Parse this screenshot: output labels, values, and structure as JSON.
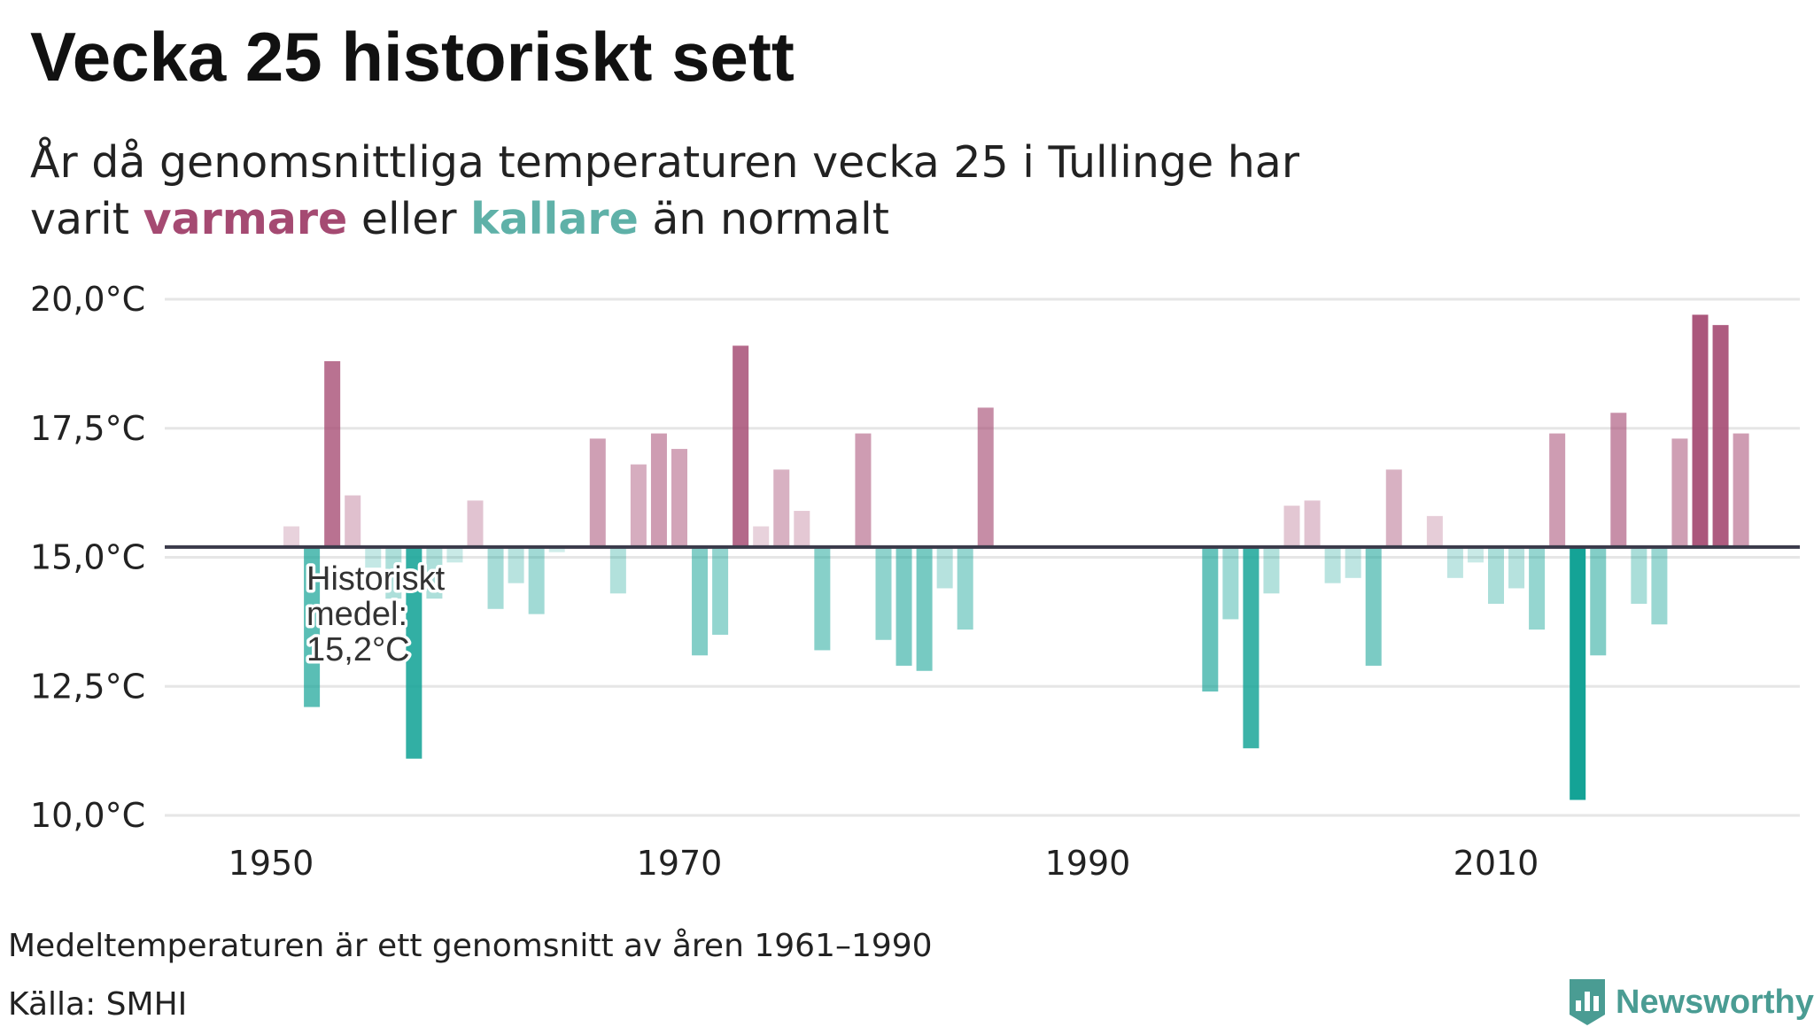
{
  "header": {
    "title": "Vecka 25 historiskt sett",
    "subtitle_line1": "År då genomsnittliga temperaturen vecka 25 i Tullinge har",
    "subtitle_pre": "varit ",
    "warm_word": "varmare",
    "subtitle_mid": " eller ",
    "cold_word": "kallare",
    "subtitle_post": " än normalt"
  },
  "colors": {
    "warm": "#a54a72",
    "cold": "#14a396",
    "baseline": "#3a3a4a",
    "grid": "#e6e6e6"
  },
  "chart_data": {
    "type": "bar",
    "title": "Vecka 25 historiskt sett",
    "xlabel": "",
    "ylabel": "",
    "baseline": 15.2,
    "ylim": [
      10.0,
      20.0
    ],
    "y_ticks": [
      {
        "value": 20.0,
        "label": "20,0°C"
      },
      {
        "value": 17.5,
        "label": "17,5°C"
      },
      {
        "value": 15.0,
        "label": "15,0°C"
      },
      {
        "value": 12.5,
        "label": "12,5°C"
      },
      {
        "value": 10.0,
        "label": "10,0°C"
      }
    ],
    "x_ticks": [
      {
        "value": 1950,
        "label": "1950"
      },
      {
        "value": 1970,
        "label": "1970"
      },
      {
        "value": 1990,
        "label": "1990"
      },
      {
        "value": 2010,
        "label": "2010"
      }
    ],
    "annotation": [
      "Historiskt",
      "medel:",
      "15,2°C"
    ],
    "years": [
      1951,
      1952,
      1953,
      1954,
      1955,
      1956,
      1957,
      1958,
      1959,
      1960,
      1961,
      1962,
      1963,
      1964,
      1966,
      1967,
      1968,
      1969,
      1970,
      1971,
      1972,
      1973,
      1974,
      1975,
      1976,
      1977,
      1979,
      1980,
      1981,
      1982,
      1983,
      1984,
      1985,
      1996,
      1997,
      1998,
      1999,
      2000,
      2001,
      2002,
      2003,
      2004,
      2005,
      2007,
      2008,
      2009,
      2010,
      2011,
      2012,
      2013,
      2014,
      2015,
      2016,
      2017,
      2018,
      2019,
      2020,
      2021,
      2022
    ],
    "values": [
      15.6,
      12.1,
      18.8,
      16.2,
      14.8,
      14.2,
      11.1,
      14.2,
      14.9,
      16.1,
      14.0,
      14.5,
      13.9,
      15.1,
      17.3,
      14.3,
      16.8,
      17.4,
      17.1,
      13.1,
      13.5,
      19.1,
      15.6,
      16.7,
      15.9,
      13.2,
      17.4,
      13.4,
      12.9,
      12.8,
      14.4,
      13.6,
      17.9,
      12.4,
      13.8,
      11.3,
      14.3,
      16.0,
      16.1,
      14.5,
      14.6,
      12.9,
      16.7,
      15.8,
      14.6,
      14.9,
      14.1,
      14.4,
      13.6,
      17.4,
      10.3,
      13.1,
      17.8,
      14.1,
      13.7,
      17.3,
      19.7,
      19.5,
      17.4
    ]
  },
  "footer": {
    "note": "Medeltemperaturen är ett genomsnitt av åren 1961–1990",
    "source": "Källa: SMHI",
    "logo_text": "Newsworthy"
  }
}
